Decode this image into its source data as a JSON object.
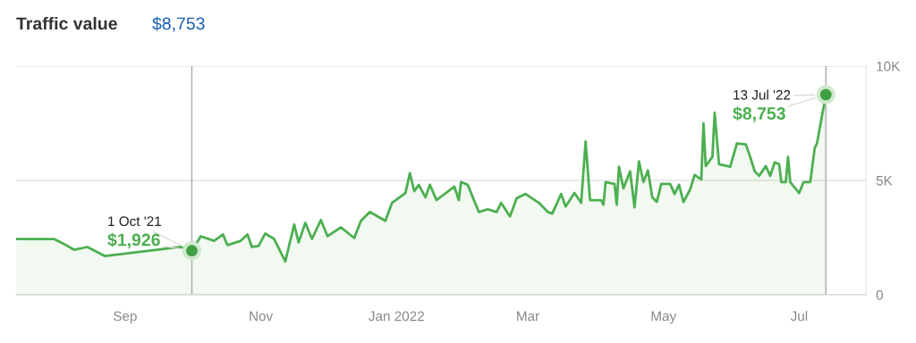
{
  "chart_data": {
    "type": "area",
    "title": "Traffic value",
    "subtitle": "$8,753",
    "xlim": [
      "2021-07-14",
      "2022-07-31"
    ],
    "xticks": [
      {
        "value": "2021-09-01",
        "label": "Sep"
      },
      {
        "value": "2021-11-01",
        "label": "Nov"
      },
      {
        "value": "2022-01-01",
        "label": "Jan 2022"
      },
      {
        "value": "2022-03-01",
        "label": "Mar"
      },
      {
        "value": "2022-05-01",
        "label": "May"
      },
      {
        "value": "2022-07-01",
        "label": "Jul"
      }
    ],
    "ylim": [
      0,
      10000
    ],
    "yticks": [
      0,
      {
        "value": 5000,
        "label": "5K"
      },
      {
        "value": 10000,
        "label": "10K"
      }
    ],
    "grid": "y",
    "legend": false,
    "series": [
      {
        "color": "#4caf50",
        "x": [
          "2021-07-14",
          "2021-07-31",
          "2021-08-04",
          "2021-08-09",
          "2021-08-15",
          "2021-08-23",
          "2021-09-26",
          "2021-10-01",
          "2021-10-05",
          "2021-10-11",
          "2021-10-15",
          "2021-10-17",
          "2021-10-23",
          "2021-10-26",
          "2021-10-28",
          "2021-10-31",
          "2021-11-03",
          "2021-11-07",
          "2021-11-12",
          "2021-11-16",
          "2021-11-18",
          "2021-11-21",
          "2021-11-24",
          "2021-11-28",
          "2021-12-01",
          "2021-12-07",
          "2021-12-13",
          "2021-12-16",
          "2021-12-20",
          "2021-12-27",
          "2021-12-30",
          "2022-01-05",
          "2022-01-07",
          "2022-01-09",
          "2022-01-11",
          "2022-01-14",
          "2022-01-16",
          "2022-01-19",
          "2022-01-27",
          "2022-01-29",
          "2022-01-30",
          "2022-02-02",
          "2022-02-07",
          "2022-02-11",
          "2022-02-15",
          "2022-02-17",
          "2022-02-21",
          "2022-02-24",
          "2022-02-28",
          "2022-03-06",
          "2022-03-10",
          "2022-03-12",
          "2022-03-16",
          "2022-03-18",
          "2022-03-22",
          "2022-03-25",
          "2022-03-27",
          "2022-03-29",
          "2022-04-03",
          "2022-04-04",
          "2022-04-05",
          "2022-04-09",
          "2022-04-10",
          "2022-04-11",
          "2022-04-13",
          "2022-04-16",
          "2022-04-18",
          "2022-04-20",
          "2022-04-22",
          "2022-04-24",
          "2022-04-26",
          "2022-04-28",
          "2022-04-30",
          "2022-05-04",
          "2022-05-06",
          "2022-05-08",
          "2022-05-10",
          "2022-05-13",
          "2022-05-15",
          "2022-05-18",
          "2022-05-19",
          "2022-05-20",
          "2022-05-23",
          "2022-05-24",
          "2022-05-26",
          "2022-05-31",
          "2022-06-03",
          "2022-06-07",
          "2022-06-09",
          "2022-06-11",
          "2022-06-13",
          "2022-06-16",
          "2022-06-18",
          "2022-06-20",
          "2022-06-22",
          "2022-06-23",
          "2022-06-25",
          "2022-06-26",
          "2022-06-27",
          "2022-07-01",
          "2022-07-03",
          "2022-07-06",
          "2022-07-08",
          "2022-07-09",
          "2022-07-13"
        ],
        "values": [
          2440,
          2440,
          2250,
          1970,
          2090,
          1690,
          2090,
          1926,
          2560,
          2360,
          2640,
          2170,
          2360,
          2640,
          2090,
          2130,
          2680,
          2440,
          1460,
          3070,
          2290,
          3150,
          2440,
          3270,
          2560,
          2950,
          2480,
          3230,
          3620,
          3230,
          4020,
          4450,
          5320,
          4530,
          4810,
          4260,
          4810,
          4140,
          4730,
          4140,
          4930,
          4810,
          3620,
          3740,
          3620,
          4020,
          3430,
          4220,
          4410,
          4020,
          3620,
          3550,
          4410,
          3860,
          4450,
          4020,
          6700,
          4140,
          4140,
          3940,
          4930,
          4850,
          3940,
          5600,
          4650,
          5400,
          3820,
          5830,
          4930,
          5440,
          4260,
          4060,
          4850,
          4850,
          4410,
          4810,
          4060,
          4610,
          5240,
          5040,
          7490,
          5630,
          6030,
          7960,
          5710,
          5600,
          6620,
          6580,
          6030,
          5400,
          5200,
          5630,
          5200,
          5790,
          5710,
          4930,
          4930,
          6030,
          4930,
          4450,
          4930,
          4930,
          6420,
          6620,
          8753
        ]
      },
      {
        "type": "scatter",
        "color": "#3f9f43",
        "marker": "circle",
        "x": [
          "2021-10-01",
          "2022-07-13"
        ],
        "values": [
          1926,
          8753
        ]
      }
    ],
    "ref_lines": [
      {
        "axis": "x",
        "value": "2021-10-01",
        "color": "#aaaaaa"
      },
      {
        "axis": "x",
        "value": "2022-07-13",
        "color": "#aaaaaa"
      }
    ],
    "annotations": [
      {
        "text": "1 Oct '21",
        "x": "2021-10-01",
        "y": 1926
      },
      {
        "text": "$1,926",
        "x": "2021-10-01",
        "y": 1926
      },
      {
        "text": "13 Jul '22",
        "x": "2022-07-13",
        "y": 8753
      },
      {
        "text": "$8,753",
        "x": "2022-07-13",
        "y": 8753
      }
    ]
  }
}
